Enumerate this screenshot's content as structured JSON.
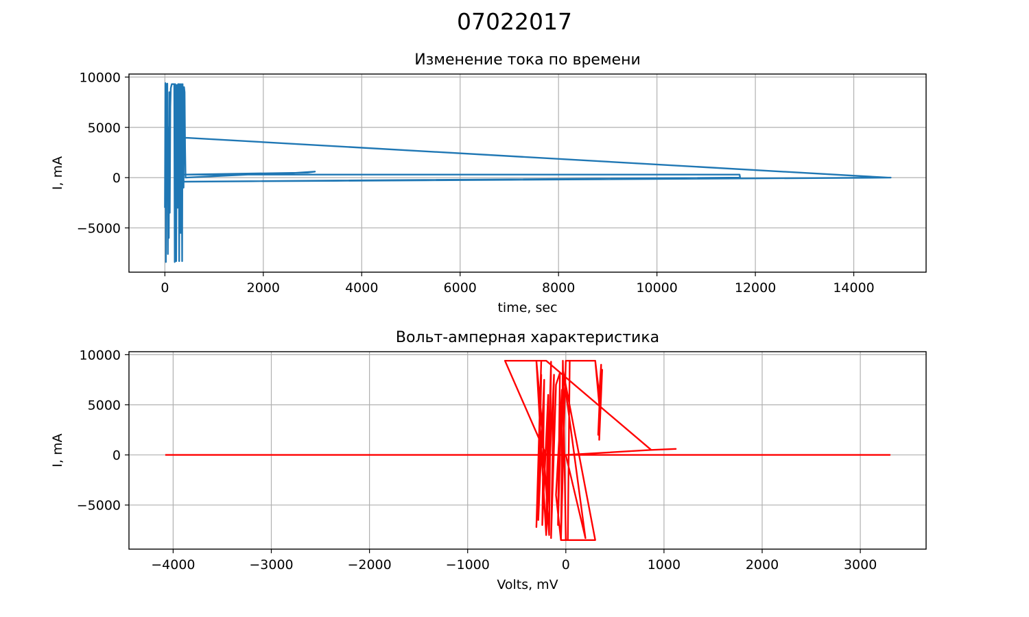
{
  "figure": {
    "title": "07022017"
  },
  "chart_data": [
    {
      "type": "line",
      "title": "Изменение тока по времени",
      "xlabel": "time, sec",
      "ylabel": "I, mA",
      "xlim": [
        -730,
        15470
      ],
      "ylim": [
        -9400,
        10300
      ],
      "xticks": [
        0,
        2000,
        4000,
        6000,
        8000,
        10000,
        12000,
        14000
      ],
      "xtick_labels": [
        "0",
        "2000",
        "4000",
        "6000",
        "8000",
        "10000",
        "12000",
        "14000"
      ],
      "yticks": [
        -5000,
        0,
        5000,
        10000
      ],
      "ytick_labels": [
        "−5000",
        "0",
        "5000",
        "10000"
      ],
      "grid": true,
      "color": "#1f77b4",
      "series": [
        {
          "x": [
            0,
            10,
            20,
            30,
            40,
            50,
            60,
            70,
            80,
            90,
            100,
            110,
            120,
            140,
            160,
            180,
            190,
            200,
            210,
            220,
            230,
            240,
            250,
            260,
            270,
            280,
            290,
            300,
            310,
            320,
            330,
            340,
            350,
            360,
            370,
            380,
            390,
            400,
            410,
            420,
            2100,
            2120,
            3050,
            2900,
            400,
            11680,
            11690,
            400,
            14750,
            14700,
            300,
            350,
            400
          ],
          "y": [
            -3000,
            9400,
            -8400,
            9300,
            200,
            9350,
            -7600,
            5000,
            -6000,
            8500,
            -3500,
            7000,
            8900,
            9300,
            9300,
            9300,
            9300,
            -8400,
            9300,
            8000,
            -8300,
            9200,
            9200,
            -3000,
            9300,
            9300,
            -8300,
            9300,
            5000,
            -5500,
            9300,
            4000,
            -8300,
            9300,
            5500,
            -1000,
            9000,
            8500,
            3000,
            0,
            400,
            300,
            600,
            500,
            300,
            300,
            0,
            -400,
            0,
            0,
            4000,
            4000,
            3900
          ]
        }
      ]
    },
    {
      "type": "line",
      "title": "Вольт-амперная характеристика",
      "xlabel": "Volts, mV",
      "ylabel": "I, mA",
      "xlim": [
        -4450,
        3670
      ],
      "ylim": [
        -9400,
        10300
      ],
      "xticks": [
        -4000,
        -3000,
        -2000,
        -1000,
        0,
        1000,
        2000,
        3000
      ],
      "xtick_labels": [
        "−4000",
        "−3000",
        "−2000",
        "−1000",
        "0",
        "1000",
        "2000",
        "3000"
      ],
      "yticks": [
        -5000,
        0,
        5000,
        10000
      ],
      "ytick_labels": [
        "−5000",
        "0",
        "5000",
        "10000"
      ],
      "grid": true,
      "color": "#ff0000",
      "series": [
        {
          "x": [
            -4080,
            3300,
            3280,
            -200,
            -620,
            -250,
            -300,
            -250,
            -280,
            -220,
            -240,
            -180,
            -200,
            -150,
            -170,
            -250,
            -300,
            -200,
            -120,
            -150,
            -100,
            -60,
            -80,
            -40,
            -100,
            -50,
            -30,
            0,
            20,
            40,
            300,
            340,
            360,
            330,
            370,
            340,
            360,
            350,
            300,
            0,
            -50,
            0,
            300,
            -30,
            200,
            200,
            0,
            870,
            1120,
            870,
            -200,
            -350,
            -620,
            -600
          ],
          "y": [
            0,
            0,
            0,
            0,
            9400,
            9400,
            -7200,
            8000,
            -6500,
            7500,
            -7000,
            6000,
            -7500,
            9300,
            -8000,
            4000,
            9400,
            -8000,
            8000,
            -8300,
            7000,
            8200,
            -7000,
            6500,
            -4000,
            -8500,
            9400,
            -8500,
            -8500,
            9400,
            9400,
            6000,
            9000,
            2000,
            8500,
            1500,
            9000,
            4000,
            9400,
            9400,
            -8500,
            -8500,
            -8500,
            8500,
            -8300,
            -8300,
            0,
            500,
            600,
            500,
            9400,
            9400,
            9400,
            9400
          ]
        }
      ]
    }
  ]
}
